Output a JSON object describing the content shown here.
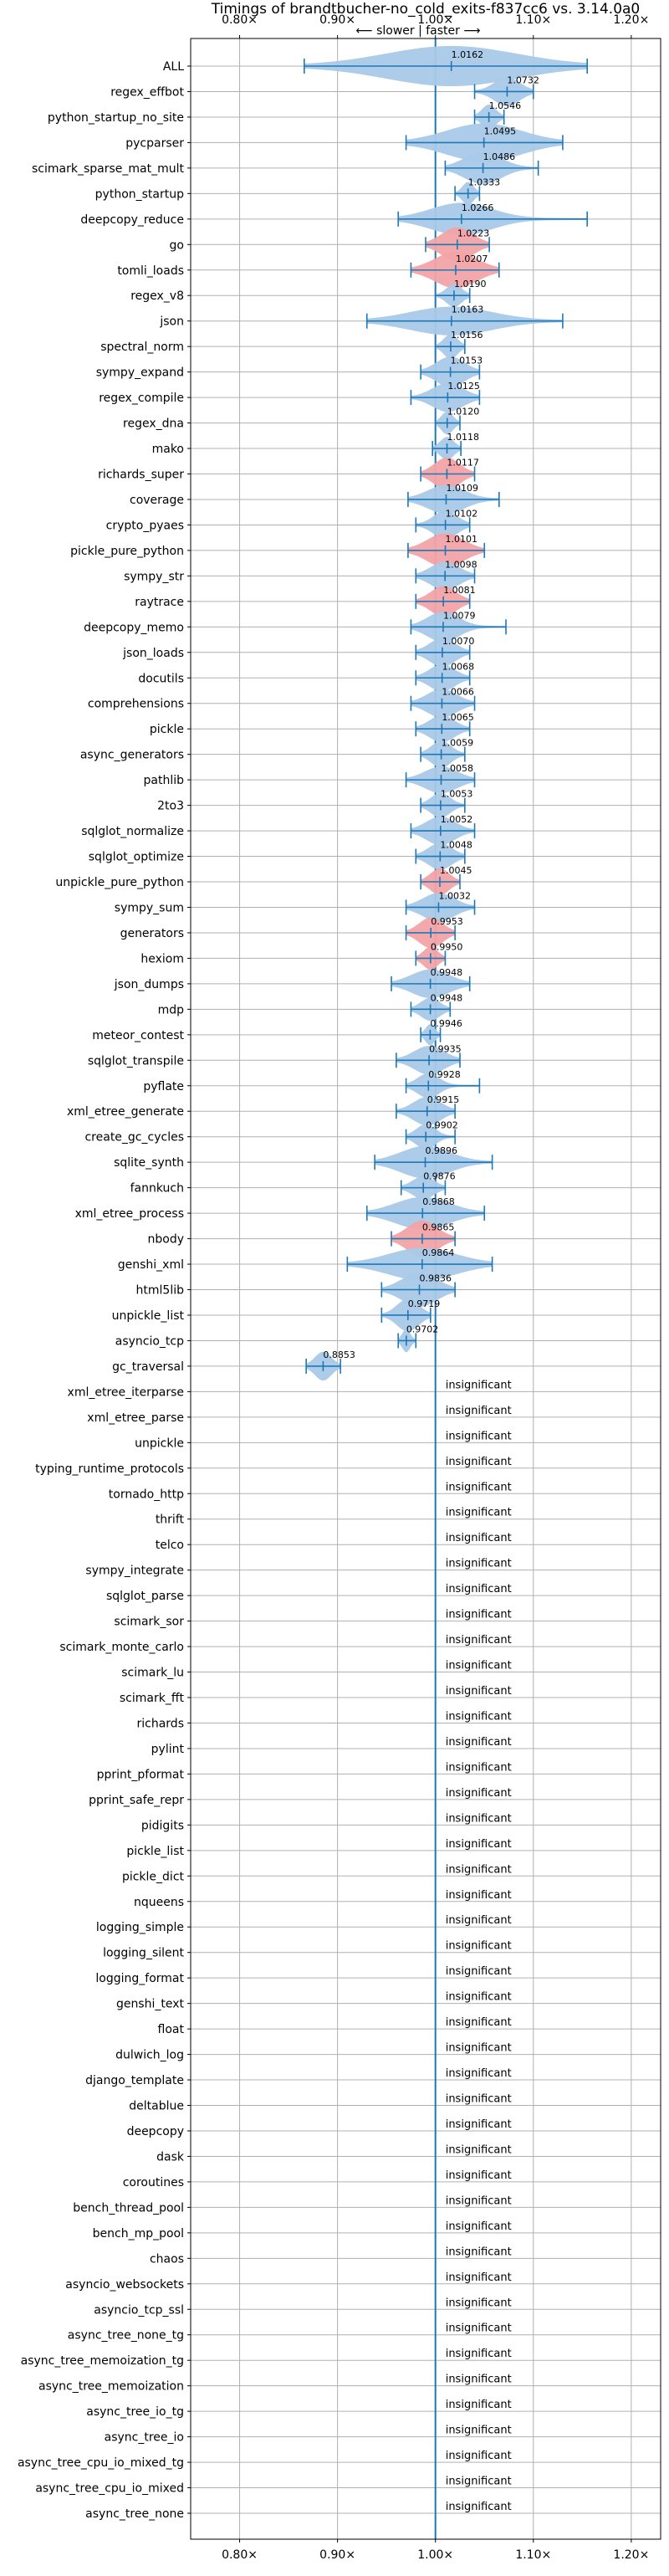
{
  "chart_data": {
    "type": "violin",
    "title": "Timings of brandtbucher-no_cold_exits-f837cc6 vs. 3.14.0a0",
    "subtitle": "⟵ slower | faster ⟶",
    "xlim": [
      0.75,
      1.23
    ],
    "xticks": [
      0.8,
      0.9,
      1.0,
      1.1,
      1.2
    ],
    "xtick_labels": [
      "0.80×",
      "0.90×",
      "1.00×",
      "1.10×",
      "1.20×"
    ],
    "reference_line": 1.0,
    "grid": true,
    "insignificant_label": "insignificant",
    "colors": {
      "faster": "#a9c9e8",
      "slower": "#f2a3a7",
      "line": "#1f77b4",
      "grid": "#b0b0b0"
    },
    "benchmarks": [
      {
        "name": "ALL",
        "mean": 1.0162,
        "label": "1.0162",
        "lo": 0.866,
        "hi": 1.155,
        "w": 1.0,
        "color": "blue"
      },
      {
        "name": "regex_effbot",
        "mean": 1.0732,
        "label": "1.0732",
        "lo": 1.04,
        "hi": 1.1,
        "w": 0.7,
        "color": "blue"
      },
      {
        "name": "python_startup_no_site",
        "mean": 1.0546,
        "label": "1.0546",
        "lo": 1.04,
        "hi": 1.07,
        "w": 0.6,
        "color": "blue"
      },
      {
        "name": "pycparser",
        "mean": 1.0495,
        "label": "1.0495",
        "lo": 0.97,
        "hi": 1.13,
        "w": 0.95,
        "color": "blue"
      },
      {
        "name": "scimark_sparse_mat_mult",
        "mean": 1.0486,
        "label": "1.0486",
        "lo": 1.01,
        "hi": 1.105,
        "w": 0.8,
        "color": "blue"
      },
      {
        "name": "python_startup",
        "mean": 1.0333,
        "label": "1.0333",
        "lo": 1.02,
        "hi": 1.045,
        "w": 0.55,
        "color": "blue"
      },
      {
        "name": "deepcopy_reduce",
        "mean": 1.0266,
        "label": "1.0266",
        "lo": 0.962,
        "hi": 1.155,
        "w": 0.8,
        "color": "blue"
      },
      {
        "name": "go",
        "mean": 1.0223,
        "label": "1.0223",
        "lo": 0.99,
        "hi": 1.055,
        "w": 0.85,
        "color": "red"
      },
      {
        "name": "tomli_loads",
        "mean": 1.0207,
        "label": "1.0207",
        "lo": 0.975,
        "hi": 1.065,
        "w": 0.9,
        "color": "red"
      },
      {
        "name": "regex_v8",
        "mean": 1.019,
        "label": "1.0190",
        "lo": 1.0,
        "hi": 1.035,
        "w": 0.55,
        "color": "blue"
      },
      {
        "name": "json",
        "mean": 1.0163,
        "label": "1.0163",
        "lo": 0.93,
        "hi": 1.13,
        "w": 0.7,
        "color": "blue"
      },
      {
        "name": "spectral_norm",
        "mean": 1.0156,
        "label": "1.0156",
        "lo": 1.0,
        "hi": 1.03,
        "w": 0.6,
        "color": "blue"
      },
      {
        "name": "sympy_expand",
        "mean": 1.0153,
        "label": "1.0153",
        "lo": 0.985,
        "hi": 1.045,
        "w": 0.75,
        "color": "blue"
      },
      {
        "name": "regex_compile",
        "mean": 1.0125,
        "label": "1.0125",
        "lo": 0.975,
        "hi": 1.045,
        "w": 0.7,
        "color": "blue"
      },
      {
        "name": "regex_dna",
        "mean": 1.012,
        "label": "1.0120",
        "lo": 1.0,
        "hi": 1.025,
        "w": 0.55,
        "color": "blue"
      },
      {
        "name": "mako",
        "mean": 1.0118,
        "label": "1.0118",
        "lo": 0.997,
        "hi": 1.026,
        "w": 0.55,
        "color": "blue"
      },
      {
        "name": "richards_super",
        "mean": 1.0117,
        "label": "1.0117",
        "lo": 0.985,
        "hi": 1.04,
        "w": 0.8,
        "color": "red"
      },
      {
        "name": "coverage",
        "mean": 1.0109,
        "label": "1.0109",
        "lo": 0.972,
        "hi": 1.065,
        "w": 0.7,
        "color": "blue"
      },
      {
        "name": "crypto_pyaes",
        "mean": 1.0102,
        "label": "1.0102",
        "lo": 0.98,
        "hi": 1.035,
        "w": 0.7,
        "color": "blue"
      },
      {
        "name": "pickle_pure_python",
        "mean": 1.0101,
        "label": "1.0101",
        "lo": 0.972,
        "hi": 1.05,
        "w": 0.85,
        "color": "red"
      },
      {
        "name": "sympy_str",
        "mean": 1.0098,
        "label": "1.0098",
        "lo": 0.98,
        "hi": 1.04,
        "w": 0.7,
        "color": "blue"
      },
      {
        "name": "raytrace",
        "mean": 1.0081,
        "label": "1.0081",
        "lo": 0.98,
        "hi": 1.035,
        "w": 0.75,
        "color": "red"
      },
      {
        "name": "deepcopy_memo",
        "mean": 1.0079,
        "label": "1.0079",
        "lo": 0.975,
        "hi": 1.072,
        "w": 0.75,
        "color": "blue"
      },
      {
        "name": "json_loads",
        "mean": 1.007,
        "label": "1.0070",
        "lo": 0.98,
        "hi": 1.035,
        "w": 0.7,
        "color": "blue"
      },
      {
        "name": "docutils",
        "mean": 1.0068,
        "label": "1.0068",
        "lo": 0.98,
        "hi": 1.035,
        "w": 0.65,
        "color": "blue"
      },
      {
        "name": "comprehensions",
        "mean": 1.0066,
        "label": "1.0066",
        "lo": 0.975,
        "hi": 1.04,
        "w": 0.7,
        "color": "blue"
      },
      {
        "name": "pickle",
        "mean": 1.0065,
        "label": "1.0065",
        "lo": 0.98,
        "hi": 1.035,
        "w": 0.65,
        "color": "blue"
      },
      {
        "name": "async_generators",
        "mean": 1.0059,
        "label": "1.0059",
        "lo": 0.985,
        "hi": 1.03,
        "w": 0.65,
        "color": "blue"
      },
      {
        "name": "pathlib",
        "mean": 1.0058,
        "label": "1.0058",
        "lo": 0.97,
        "hi": 1.04,
        "w": 0.65,
        "color": "blue"
      },
      {
        "name": "2to3",
        "mean": 1.0053,
        "label": "1.0053",
        "lo": 0.985,
        "hi": 1.03,
        "w": 0.6,
        "color": "blue"
      },
      {
        "name": "sqlglot_normalize",
        "mean": 1.0052,
        "label": "1.0052",
        "lo": 0.975,
        "hi": 1.04,
        "w": 0.7,
        "color": "blue"
      },
      {
        "name": "sqlglot_optimize",
        "mean": 1.0048,
        "label": "1.0048",
        "lo": 0.98,
        "hi": 1.03,
        "w": 0.65,
        "color": "blue"
      },
      {
        "name": "unpickle_pure_python",
        "mean": 1.0045,
        "label": "1.0045",
        "lo": 0.985,
        "hi": 1.025,
        "w": 0.65,
        "color": "red"
      },
      {
        "name": "sympy_sum",
        "mean": 1.0032,
        "label": "1.0032",
        "lo": 0.97,
        "hi": 1.04,
        "w": 0.7,
        "color": "blue"
      },
      {
        "name": "generators",
        "mean": 0.9953,
        "label": "0.9953",
        "lo": 0.97,
        "hi": 1.02,
        "w": 0.75,
        "color": "red"
      },
      {
        "name": "hexiom",
        "mean": 0.995,
        "label": "0.9950",
        "lo": 0.98,
        "hi": 1.01,
        "w": 0.55,
        "color": "red"
      },
      {
        "name": "json_dumps",
        "mean": 0.9948,
        "label": "0.9948",
        "lo": 0.955,
        "hi": 1.035,
        "w": 0.7,
        "color": "blue"
      },
      {
        "name": "mdp",
        "mean": 0.9948,
        "label": "0.9948",
        "lo": 0.975,
        "hi": 1.015,
        "w": 0.55,
        "color": "blue"
      },
      {
        "name": "meteor_contest",
        "mean": 0.9946,
        "label": "0.9946",
        "lo": 0.985,
        "hi": 1.005,
        "w": 0.5,
        "color": "blue"
      },
      {
        "name": "sqlglot_transpile",
        "mean": 0.9935,
        "label": "0.9935",
        "lo": 0.96,
        "hi": 1.025,
        "w": 0.7,
        "color": "blue"
      },
      {
        "name": "pyflate",
        "mean": 0.9928,
        "label": "0.9928",
        "lo": 0.97,
        "hi": 1.045,
        "w": 0.6,
        "color": "blue"
      },
      {
        "name": "xml_etree_generate",
        "mean": 0.9915,
        "label": "0.9915",
        "lo": 0.96,
        "hi": 1.02,
        "w": 0.7,
        "color": "blue"
      },
      {
        "name": "create_gc_cycles",
        "mean": 0.9902,
        "label": "0.9902",
        "lo": 0.97,
        "hi": 1.02,
        "w": 0.6,
        "color": "blue"
      },
      {
        "name": "sqlite_synth",
        "mean": 0.9896,
        "label": "0.9896",
        "lo": 0.938,
        "hi": 1.058,
        "w": 0.8,
        "color": "blue"
      },
      {
        "name": "fannkuch",
        "mean": 0.9876,
        "label": "0.9876",
        "lo": 0.965,
        "hi": 1.01,
        "w": 0.55,
        "color": "blue"
      },
      {
        "name": "xml_etree_process",
        "mean": 0.9868,
        "label": "0.9868",
        "lo": 0.93,
        "hi": 1.05,
        "w": 0.8,
        "color": "blue"
      },
      {
        "name": "nbody",
        "mean": 0.9865,
        "label": "0.9865",
        "lo": 0.955,
        "hi": 1.02,
        "w": 0.9,
        "color": "red"
      },
      {
        "name": "genshi_xml",
        "mean": 0.9864,
        "label": "0.9864",
        "lo": 0.91,
        "hi": 1.058,
        "w": 0.8,
        "color": "blue"
      },
      {
        "name": "html5lib",
        "mean": 0.9836,
        "label": "0.9836",
        "lo": 0.945,
        "hi": 1.02,
        "w": 0.85,
        "color": "blue"
      },
      {
        "name": "unpickle_list",
        "mean": 0.9719,
        "label": "0.9719",
        "lo": 0.945,
        "hi": 0.995,
        "w": 0.8,
        "color": "blue"
      },
      {
        "name": "asyncio_tcp",
        "mean": 0.9702,
        "label": "0.9702",
        "lo": 0.962,
        "hi": 0.98,
        "w": 0.55,
        "color": "blue"
      },
      {
        "name": "gc_traversal",
        "mean": 0.8853,
        "label": "0.8853",
        "lo": 0.868,
        "hi": 0.903,
        "w": 0.7,
        "color": "blue"
      },
      {
        "name": "xml_etree_iterparse",
        "insignificant": true
      },
      {
        "name": "xml_etree_parse",
        "insignificant": true
      },
      {
        "name": "unpickle",
        "insignificant": true
      },
      {
        "name": "typing_runtime_protocols",
        "insignificant": true
      },
      {
        "name": "tornado_http",
        "insignificant": true
      },
      {
        "name": "thrift",
        "insignificant": true
      },
      {
        "name": "telco",
        "insignificant": true
      },
      {
        "name": "sympy_integrate",
        "insignificant": true
      },
      {
        "name": "sqlglot_parse",
        "insignificant": true
      },
      {
        "name": "scimark_sor",
        "insignificant": true
      },
      {
        "name": "scimark_monte_carlo",
        "insignificant": true
      },
      {
        "name": "scimark_lu",
        "insignificant": true
      },
      {
        "name": "scimark_fft",
        "insignificant": true
      },
      {
        "name": "richards",
        "insignificant": true
      },
      {
        "name": "pylint",
        "insignificant": true
      },
      {
        "name": "pprint_pformat",
        "insignificant": true
      },
      {
        "name": "pprint_safe_repr",
        "insignificant": true
      },
      {
        "name": "pidigits",
        "insignificant": true
      },
      {
        "name": "pickle_list",
        "insignificant": true
      },
      {
        "name": "pickle_dict",
        "insignificant": true
      },
      {
        "name": "nqueens",
        "insignificant": true
      },
      {
        "name": "logging_simple",
        "insignificant": true
      },
      {
        "name": "logging_silent",
        "insignificant": true
      },
      {
        "name": "logging_format",
        "insignificant": true
      },
      {
        "name": "genshi_text",
        "insignificant": true
      },
      {
        "name": "float",
        "insignificant": true
      },
      {
        "name": "dulwich_log",
        "insignificant": true
      },
      {
        "name": "django_template",
        "insignificant": true
      },
      {
        "name": "deltablue",
        "insignificant": true
      },
      {
        "name": "deepcopy",
        "insignificant": true
      },
      {
        "name": "dask",
        "insignificant": true
      },
      {
        "name": "coroutines",
        "insignificant": true
      },
      {
        "name": "bench_thread_pool",
        "insignificant": true
      },
      {
        "name": "bench_mp_pool",
        "insignificant": true
      },
      {
        "name": "chaos",
        "insignificant": true
      },
      {
        "name": "asyncio_websockets",
        "insignificant": true
      },
      {
        "name": "asyncio_tcp_ssl",
        "insignificant": true
      },
      {
        "name": "async_tree_none_tg",
        "insignificant": true
      },
      {
        "name": "async_tree_memoization_tg",
        "insignificant": true
      },
      {
        "name": "async_tree_memoization",
        "insignificant": true
      },
      {
        "name": "async_tree_io_tg",
        "insignificant": true
      },
      {
        "name": "async_tree_io",
        "insignificant": true
      },
      {
        "name": "async_tree_cpu_io_mixed_tg",
        "insignificant": true
      },
      {
        "name": "async_tree_cpu_io_mixed",
        "insignificant": true
      },
      {
        "name": "async_tree_none",
        "insignificant": true
      }
    ]
  }
}
